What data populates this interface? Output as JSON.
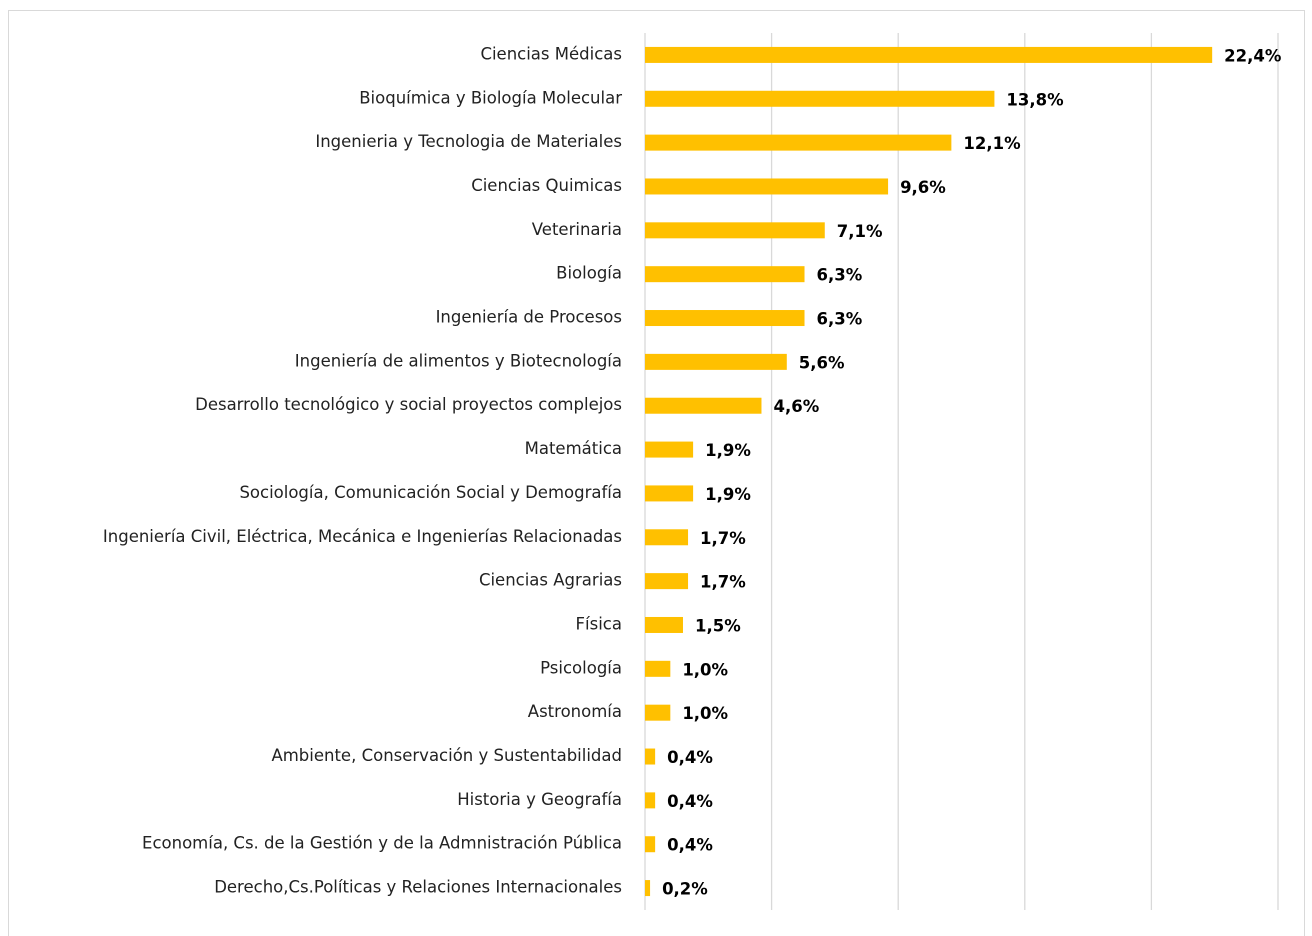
{
  "chart_data": {
    "type": "barh",
    "categories": [
      "Ciencias Médicas",
      "Bioquímica y Biología Molecular",
      "Ingenieria y Tecnologia de Materiales",
      "Ciencias Quimicas",
      "Veterinaria",
      "Biología",
      "Ingeniería de Procesos",
      "Ingeniería de alimentos y Biotecnología",
      "Desarrollo tecnológico y social proyectos complejos",
      "Matemática",
      "Sociología, Comunicación Social y Demografía",
      "Ingeniería Civil, Eléctrica, Mecánica e Ingenierías Relacionadas",
      "Ciencias Agrarias",
      "Física",
      "Psicología",
      "Astronomía",
      "Ambiente, Conservación y Sustentabilidad",
      "Historia y Geografía",
      "Economía, Cs. de la Gestión y de la Admnistración Pública",
      "Derecho,Cs.Políticas y Relaciones Internacionales"
    ],
    "values": [
      22.4,
      13.8,
      12.1,
      9.6,
      7.1,
      6.3,
      6.3,
      5.6,
      4.6,
      1.9,
      1.9,
      1.7,
      1.7,
      1.5,
      1.0,
      1.0,
      0.4,
      0.4,
      0.4,
      0.2
    ],
    "value_labels": [
      "22,4%",
      "13,8%",
      "12,1%",
      "9,6%",
      "7,1%",
      "6,3%",
      "6,3%",
      "5,6%",
      "4,6%",
      "1,9%",
      "1,9%",
      "1,7%",
      "1,7%",
      "1,5%",
      "1,0%",
      "1,0%",
      "0,4%",
      "0,4%",
      "0,4%",
      "0,2%"
    ],
    "color": "#FFC000",
    "xlim": [
      0,
      25
    ],
    "xticks": [
      0,
      5,
      10,
      15,
      20,
      25
    ],
    "grid": true
  }
}
